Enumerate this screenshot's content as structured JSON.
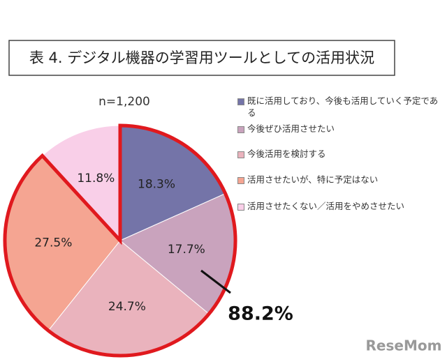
{
  "chart_data": {
    "type": "pie",
    "title": "表 4. デジタル機器の学習用ツールとしての活用状況",
    "subtitle": "n=1,200",
    "series": [
      {
        "name": "既に活用しており、今後も活用していく予定である",
        "color": "#7474a8",
        "values": [
          18.3
        ]
      },
      {
        "name": "今後ぜひ活用させたい",
        "color": "#c9a3bd",
        "values": [
          17.7
        ]
      },
      {
        "name": "今後活用を検討する",
        "color": "#eab3bd",
        "values": [
          24.7
        ]
      },
      {
        "name": "活用させたいが、特に予定はない",
        "color": "#f5a592",
        "values": [
          27.5
        ]
      },
      {
        "name": "活用させたくない／活用をやめさせたい",
        "color": "#f9cfe8",
        "values": [
          11.8
        ]
      }
    ],
    "value_labels": [
      "18.3%",
      "17.7%",
      "24.7%",
      "27.5%",
      "11.8%"
    ],
    "annotation": "88.2%",
    "highlight_color": "#e0191e",
    "watermark": "ReseMom"
  }
}
